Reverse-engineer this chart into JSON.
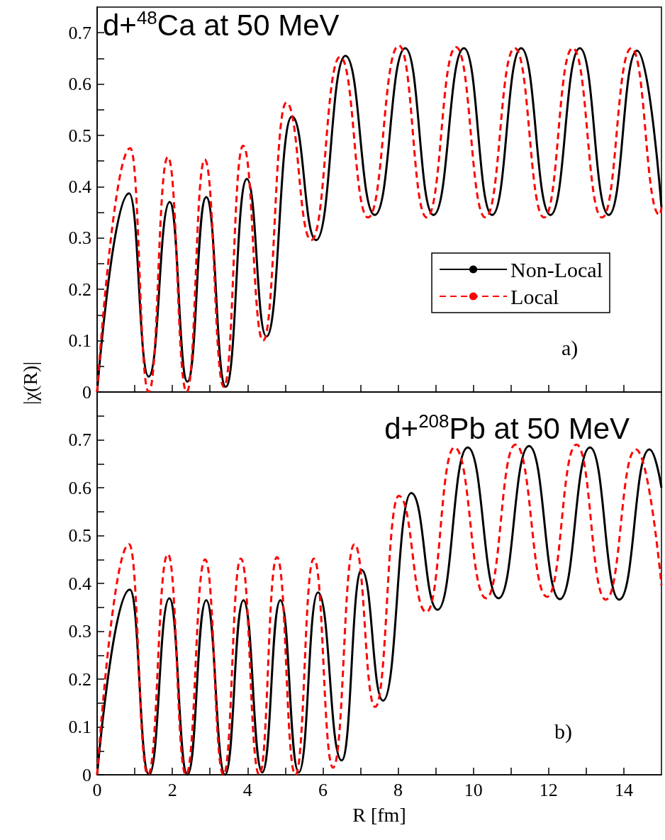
{
  "chart_data": [
    {
      "type": "line",
      "title": "d+$^{48}$Ca at 50 MeV",
      "ylabel": "|χ(R)|",
      "annotations": [
        "a)"
      ],
      "xlim": [
        0,
        15
      ],
      "ylim": [
        0,
        0.75
      ],
      "xticks": [
        0,
        {
          "value": 1,
          "label": null
        },
        2,
        {
          "value": 3,
          "label": null
        },
        4,
        {
          "value": 5,
          "label": null
        },
        6,
        {
          "value": 7,
          "label": null
        },
        8,
        {
          "value": 9,
          "label": null
        },
        10,
        {
          "value": 11,
          "label": null
        },
        12,
        {
          "value": 13,
          "label": null
        },
        14
      ],
      "yticks": [
        0,
        {
          "value": 0.05,
          "label": null
        },
        0.1,
        {
          "value": 0.15,
          "label": null
        },
        0.2,
        {
          "value": 0.25,
          "label": null
        },
        0.3,
        {
          "value": 0.35,
          "label": null
        },
        0.4,
        {
          "value": 0.45,
          "label": null
        },
        0.5,
        {
          "value": 0.55,
          "label": null
        },
        0.6,
        {
          "value": 0.65,
          "label": null
        },
        0.7
      ],
      "tick_labels": "y",
      "grid": false,
      "legend": "right",
      "marker": "none",
      "series": [
        {
          "name": "Non-Local",
          "color": "#000000",
          "line_style": "solid",
          "x": [
            0,
            0.85,
            1.37,
            1.93,
            2.4,
            2.9,
            3.42,
            3.98,
            4.5,
            5.18,
            5.82,
            6.6,
            7.38,
            8.19,
            8.94,
            9.75,
            10.5,
            11.27,
            12.05,
            12.83,
            13.6,
            14.35,
            15
          ],
          "values": [
            0,
            0.387,
            0.03,
            0.37,
            0.02,
            0.38,
            0.01,
            0.415,
            0.108,
            0.537,
            0.296,
            0.655,
            0.345,
            0.67,
            0.345,
            0.67,
            0.345,
            0.67,
            0.345,
            0.67,
            0.345,
            0.665,
            0.36
          ]
        },
        {
          "name": "Local",
          "color": "#ff0000",
          "line_style": "dashed",
          "x": [
            0,
            0.88,
            1.37,
            1.88,
            2.38,
            2.86,
            3.37,
            3.88,
            4.41,
            5.03,
            5.69,
            6.46,
            7.2,
            8.02,
            8.76,
            9.54,
            10.32,
            11.1,
            11.88,
            12.64,
            13.42,
            14.2,
            14.95,
            15
          ],
          "values": [
            0,
            0.475,
            0,
            0.458,
            0,
            0.453,
            0.01,
            0.48,
            0.1,
            0.564,
            0.296,
            0.653,
            0.34,
            0.675,
            0.34,
            0.672,
            0.34,
            0.67,
            0.34,
            0.67,
            0.34,
            0.67,
            0.345,
            0.36
          ]
        }
      ]
    },
    {
      "type": "line",
      "title": "d+$^{208}$Pb at 50 MeV",
      "xlabel": "R [fm]",
      "annotations": [
        "b)"
      ],
      "xlim": [
        0,
        15
      ],
      "ylim": [
        0,
        0.8
      ],
      "xticks": [
        0,
        {
          "value": 1,
          "label": null
        },
        2,
        {
          "value": 3,
          "label": null
        },
        4,
        {
          "value": 5,
          "label": null
        },
        6,
        {
          "value": 7,
          "label": null
        },
        8,
        {
          "value": 9,
          "label": null
        },
        10,
        {
          "value": 11,
          "label": null
        },
        12,
        {
          "value": 13,
          "label": null
        },
        14
      ],
      "yticks": [
        0,
        {
          "value": 0.05,
          "label": null
        },
        0.1,
        {
          "value": 0.15,
          "label": null
        },
        0.2,
        {
          "value": 0.25,
          "label": null
        },
        0.3,
        {
          "value": 0.35,
          "label": null
        },
        0.4,
        {
          "value": 0.45,
          "label": null
        },
        0.5,
        {
          "value": 0.55,
          "label": null
        },
        0.6,
        {
          "value": 0.65,
          "label": null
        },
        0.7,
        {
          "value": 0.75,
          "label": null
        }
      ],
      "grid": false,
      "marker": "none",
      "series": [
        {
          "color": "#000000",
          "line_style": "solid",
          "x": [
            0,
            0.87,
            1.38,
            1.92,
            2.4,
            2.9,
            3.4,
            3.89,
            4.39,
            4.87,
            5.36,
            5.87,
            6.5,
            7.03,
            7.6,
            8.35,
            9.05,
            9.85,
            10.67,
            11.48,
            12.3,
            13.1,
            13.88,
            14.68,
            15
          ],
          "values": [
            0,
            0.387,
            0,
            0.369,
            0,
            0.365,
            0,
            0.365,
            0.005,
            0.365,
            0.005,
            0.381,
            0.03,
            0.428,
            0.155,
            0.589,
            0.345,
            0.684,
            0.369,
            0.687,
            0.367,
            0.684,
            0.366,
            0.68,
            0.6
          ]
        },
        {
          "color": "#ff0000",
          "line_style": "dashed",
          "x": [
            0,
            0.85,
            1.35,
            1.88,
            2.36,
            2.87,
            3.36,
            3.82,
            4.31,
            4.78,
            5.27,
            5.76,
            6.27,
            6.84,
            7.39,
            8.02,
            8.75,
            9.5,
            10.34,
            11.12,
            11.96,
            12.74,
            13.52,
            14.32,
            15
          ],
          "values": [
            0,
            0.482,
            0,
            0.461,
            0,
            0.45,
            0,
            0.452,
            0,
            0.455,
            0,
            0.452,
            0.015,
            0.482,
            0.142,
            0.583,
            0.34,
            0.684,
            0.369,
            0.69,
            0.372,
            0.69,
            0.366,
            0.68,
            0.396
          ]
        }
      ]
    }
  ]
}
